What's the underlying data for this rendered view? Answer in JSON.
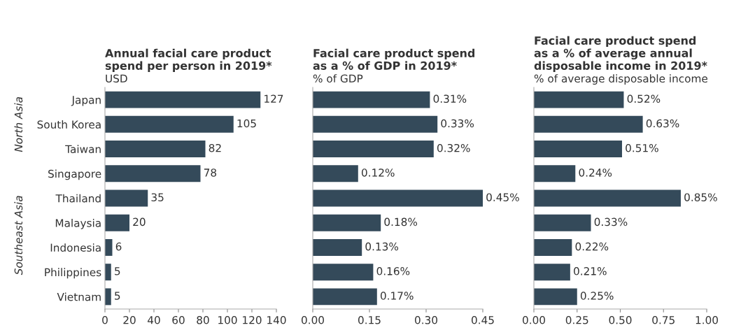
{
  "chart_data": [
    {
      "type": "bar",
      "orientation": "horizontal",
      "title": "Annual facial care product\nspend per person in 2019*",
      "subtitle": "USD",
      "categories": [
        "Japan",
        "South Korea",
        "Taiwan",
        "Singapore",
        "Thailand",
        "Malaysia",
        "Indonesia",
        "Philippines",
        "Vietnam"
      ],
      "values": [
        127,
        105,
        82,
        78,
        35,
        20,
        6,
        5,
        5
      ],
      "color": "#344a5a",
      "data_labels": true,
      "xlim": [
        0,
        140
      ],
      "xticks": [
        0,
        20,
        40,
        60,
        80,
        100,
        120,
        140
      ],
      "grid": false,
      "annotations": [
        "North Asia",
        "Southeast Asia"
      ]
    },
    {
      "type": "bar",
      "orientation": "horizontal",
      "title": "Facial care product spend\nas a % of GDP in 2019*",
      "subtitle": "% of GDP",
      "categories": [
        null,
        null,
        null,
        null,
        null,
        null,
        null,
        null,
        null
      ],
      "values": [
        0.31,
        0.33,
        0.32,
        0.12,
        0.45,
        0.18,
        0.13,
        0.16,
        0.17
      ],
      "color": "#344a5a",
      "value_labels": [
        "0.31%",
        "0.33%",
        "0.32%",
        "0.12%",
        "0.45%",
        "0.18%",
        "0.13%",
        "0.16%",
        "0.17%"
      ],
      "xlim": [
        0,
        0.45
      ],
      "xticks": [
        {
          "value": 0,
          "label": "0.00"
        },
        0.15,
        {
          "value": 0.3,
          "label": "0.30"
        },
        0.45
      ],
      "grid": false,
      "tick_labels": "x"
    },
    {
      "type": "bar",
      "orientation": "horizontal",
      "title": "Facial care product spend\nas a % of average annual\ndisposable income in 2019*",
      "subtitle": "% of average disposable income",
      "categories": [
        null,
        null,
        null,
        null,
        null,
        null,
        null,
        null,
        null
      ],
      "values": [
        0.52,
        0.63,
        0.51,
        0.24,
        0.85,
        0.33,
        0.22,
        0.21,
        0.25
      ],
      "color": "#344a5a",
      "value_labels": [
        "0.52%",
        "0.63%",
        "0.51%",
        "0.24%",
        "0.85%",
        "0.33%",
        "0.22%",
        "0.21%",
        "0.25%"
      ],
      "xlim": [
        0,
        1.0
      ],
      "xticks": [
        {
          "value": 0,
          "label": "0.00"
        },
        0.25,
        {
          "value": 0.5,
          "label": "0.50"
        },
        0.75,
        {
          "value": 1.0,
          "label": "1.00"
        }
      ],
      "grid": false,
      "tick_labels": "x"
    }
  ]
}
